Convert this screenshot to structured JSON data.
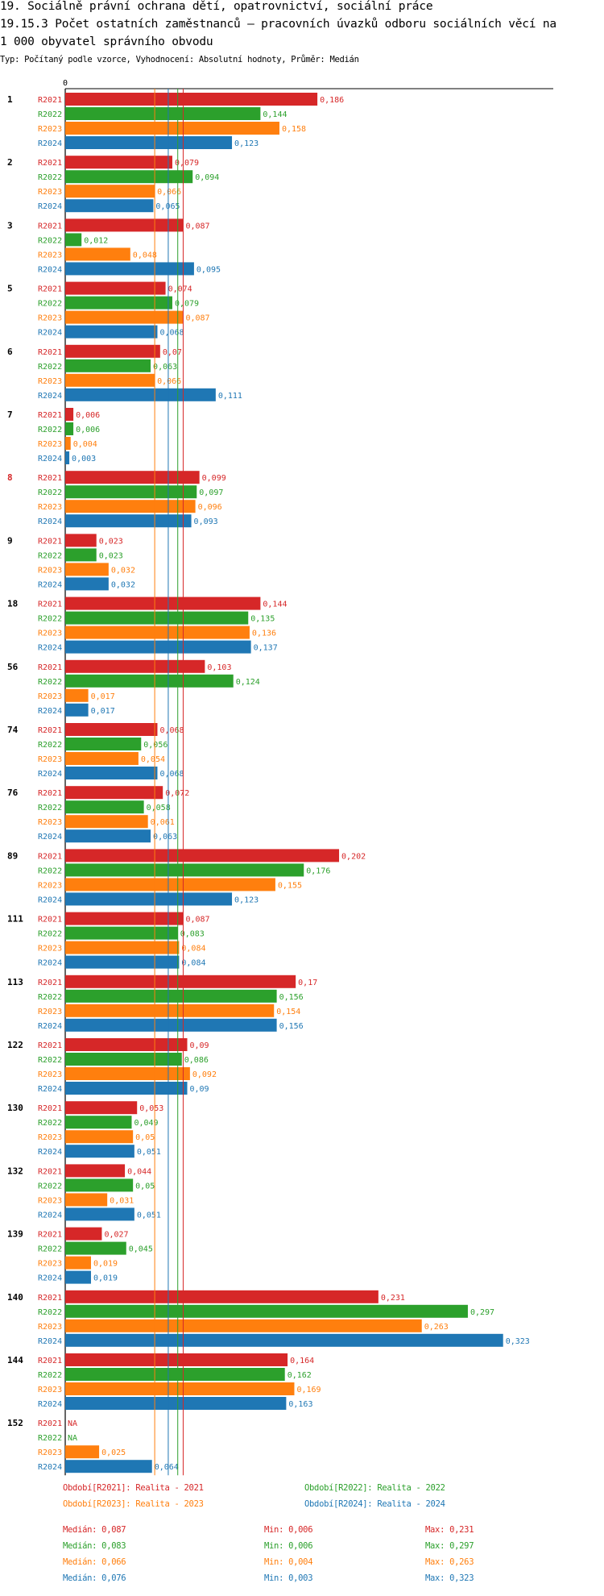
{
  "title_line1": "19. Sociálně právní ochrana dětí, opatrovnictví, sociální práce",
  "title_line2": "19.15.3 Počet ostatních zaměstnanců – pracovních úvazků odboru sociálních věcí na",
  "title_line3": " 1 000 obyvatel správního obvodu",
  "subtitle": "Typ: Počítaný podle vzorce, Vyhodnocení: Absolutní hodnoty, Průměr: Medián",
  "colors": {
    "R2021": "#d62728",
    "R2022": "#2ca02c",
    "R2023": "#ff7f0e",
    "R2024": "#1f77b4",
    "highlight": "#d62728"
  },
  "chart_data": {
    "type": "bar",
    "orientation": "horizontal",
    "x_tick_label": "0",
    "xlim": [
      0,
      0.36
    ],
    "series_names": [
      "R2021",
      "R2022",
      "R2023",
      "R2024"
    ],
    "groups": [
      {
        "label": "1",
        "values": [
          0.186,
          0.144,
          0.158,
          0.123
        ],
        "labels": [
          "0,186",
          "0,144",
          "0,158",
          "0,123"
        ]
      },
      {
        "label": "2",
        "values": [
          0.079,
          0.094,
          0.066,
          0.065
        ],
        "labels": [
          "0,079",
          "0,094",
          "0,066",
          "0,065"
        ]
      },
      {
        "label": "3",
        "values": [
          0.087,
          0.012,
          0.048,
          0.095
        ],
        "labels": [
          "0,087",
          "0,012",
          "0,048",
          "0,095"
        ]
      },
      {
        "label": "5",
        "values": [
          0.074,
          0.079,
          0.087,
          0.068
        ],
        "labels": [
          "0,074",
          "0,079",
          "0,087",
          "0,068"
        ]
      },
      {
        "label": "6",
        "values": [
          0.07,
          0.063,
          0.066,
          0.111
        ],
        "labels": [
          "0,07",
          "0,063",
          "0,066",
          "0,111"
        ]
      },
      {
        "label": "7",
        "values": [
          0.006,
          0.006,
          0.004,
          0.003
        ],
        "labels": [
          "0,006",
          "0,006",
          "0,004",
          "0,003"
        ]
      },
      {
        "label": "8",
        "highlight": true,
        "values": [
          0.099,
          0.097,
          0.096,
          0.093
        ],
        "labels": [
          "0,099",
          "0,097",
          "0,096",
          "0,093"
        ]
      },
      {
        "label": "9",
        "values": [
          0.023,
          0.023,
          0.032,
          0.032
        ],
        "labels": [
          "0,023",
          "0,023",
          "0,032",
          "0,032"
        ]
      },
      {
        "label": "18",
        "values": [
          0.144,
          0.135,
          0.136,
          0.137
        ],
        "labels": [
          "0,144",
          "0,135",
          "0,136",
          "0,137"
        ]
      },
      {
        "label": "56",
        "values": [
          0.103,
          0.124,
          0.017,
          0.017
        ],
        "labels": [
          "0,103",
          "0,124",
          "0,017",
          "0,017"
        ]
      },
      {
        "label": "74",
        "values": [
          0.068,
          0.056,
          0.054,
          0.068
        ],
        "labels": [
          "0,068",
          "0,056",
          "0,054",
          "0,068"
        ]
      },
      {
        "label": "76",
        "values": [
          0.072,
          0.058,
          0.061,
          0.063
        ],
        "labels": [
          "0,072",
          "0,058",
          "0,061",
          "0,063"
        ]
      },
      {
        "label": "89",
        "values": [
          0.202,
          0.176,
          0.155,
          0.123
        ],
        "labels": [
          "0,202",
          "0,176",
          "0,155",
          "0,123"
        ]
      },
      {
        "label": "111",
        "values": [
          0.087,
          0.083,
          0.084,
          0.084
        ],
        "labels": [
          "0,087",
          "0,083",
          "0,084",
          "0,084"
        ]
      },
      {
        "label": "113",
        "values": [
          0.17,
          0.156,
          0.154,
          0.156
        ],
        "labels": [
          "0,17",
          "0,156",
          "0,154",
          "0,156"
        ]
      },
      {
        "label": "122",
        "values": [
          0.09,
          0.086,
          0.092,
          0.09
        ],
        "labels": [
          "0,09",
          "0,086",
          "0,092",
          "0,09"
        ]
      },
      {
        "label": "130",
        "values": [
          0.053,
          0.049,
          0.05,
          0.051
        ],
        "labels": [
          "0,053",
          "0,049",
          "0,05",
          "0,051"
        ]
      },
      {
        "label": "132",
        "values": [
          0.044,
          0.05,
          0.031,
          0.051
        ],
        "labels": [
          "0,044",
          "0,05",
          "0,031",
          "0,051"
        ]
      },
      {
        "label": "139",
        "values": [
          0.027,
          0.045,
          0.019,
          0.019
        ],
        "labels": [
          "0,027",
          "0,045",
          "0,019",
          "0,019"
        ]
      },
      {
        "label": "140",
        "values": [
          0.231,
          0.297,
          0.263,
          0.323
        ],
        "labels": [
          "0,231",
          "0,297",
          "0,263",
          "0,323"
        ]
      },
      {
        "label": "144",
        "values": [
          0.164,
          0.162,
          0.169,
          0.163
        ],
        "labels": [
          "0,164",
          "0,162",
          "0,169",
          "0,163"
        ]
      },
      {
        "label": "152",
        "values": [
          null,
          null,
          0.025,
          0.064
        ],
        "labels": [
          "NA",
          "NA",
          "0,025",
          "0,064"
        ]
      }
    ],
    "median_lines": [
      0.087,
      0.083,
      0.066,
      0.076
    ]
  },
  "legend": [
    {
      "label": "Období[R2021]: Realita - 2021"
    },
    {
      "label": "Období[R2022]: Realita - 2022"
    },
    {
      "label": "Období[R2023]: Realita - 2023"
    },
    {
      "label": "Období[R2024]: Realita - 2024"
    }
  ],
  "stats": [
    {
      "median": "Medián: 0,087",
      "min": "Min: 0,006",
      "max": "Max: 0,231"
    },
    {
      "median": "Medián: 0,083",
      "min": "Min: 0,006",
      "max": "Max: 0,297"
    },
    {
      "median": "Medián: 0,066",
      "min": "Min: 0,004",
      "max": "Max: 0,263"
    },
    {
      "median": "Medián: 0,076",
      "min": "Min: 0,003",
      "max": "Max: 0,323"
    }
  ]
}
